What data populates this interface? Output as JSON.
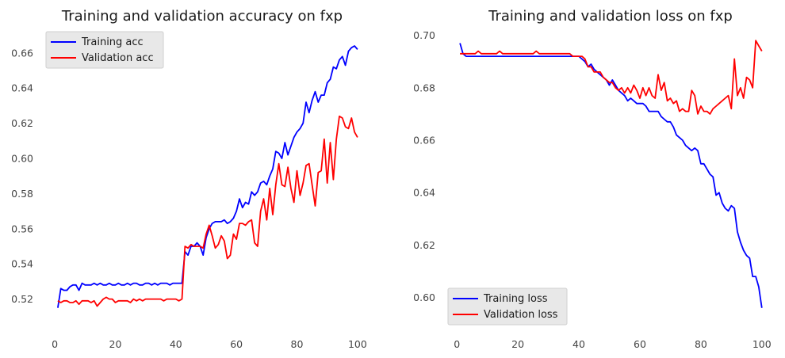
{
  "chart_data": [
    {
      "type": "line",
      "title": "Training and validation accuracy on fxp",
      "xlabel": "",
      "ylabel": "",
      "xlim": [
        -5,
        105
      ],
      "ylim": [
        0.509,
        0.673
      ],
      "xticks": [
        0,
        20,
        40,
        60,
        80,
        100
      ],
      "yticks": [
        0.52,
        0.54,
        0.56,
        0.58,
        0.6,
        0.62,
        0.64,
        0.66
      ],
      "ytick_labels": [
        "0.52",
        "0.54",
        "0.56",
        "0.58",
        "0.60",
        "0.62",
        "0.64",
        "0.66"
      ],
      "grid": false,
      "legend": "upper-left",
      "series": [
        {
          "name": "Training acc",
          "color": "#0000ff",
          "x": [
            1,
            2,
            3,
            4,
            5,
            6,
            7,
            8,
            9,
            10,
            11,
            12,
            13,
            14,
            15,
            16,
            17,
            18,
            19,
            20,
            21,
            22,
            23,
            24,
            25,
            26,
            27,
            28,
            29,
            30,
            31,
            32,
            33,
            34,
            35,
            36,
            37,
            38,
            39,
            40,
            41,
            42,
            43,
            44,
            45,
            46,
            47,
            48,
            49,
            50,
            51,
            52,
            53,
            54,
            55,
            56,
            57,
            58,
            59,
            60,
            61,
            62,
            63,
            64,
            65,
            66,
            67,
            68,
            69,
            70,
            71,
            72,
            73,
            74,
            75,
            76,
            77,
            78,
            79,
            80,
            81,
            82,
            83,
            84,
            85,
            86,
            87,
            88,
            89,
            90,
            91,
            92,
            93,
            94,
            95,
            96,
            97,
            98,
            99,
            100
          ],
          "y": [
            0.515,
            0.526,
            0.525,
            0.525,
            0.527,
            0.528,
            0.528,
            0.525,
            0.529,
            0.528,
            0.528,
            0.528,
            0.529,
            0.528,
            0.529,
            0.528,
            0.528,
            0.529,
            0.528,
            0.528,
            0.529,
            0.528,
            0.528,
            0.529,
            0.528,
            0.529,
            0.529,
            0.528,
            0.528,
            0.529,
            0.529,
            0.528,
            0.529,
            0.528,
            0.529,
            0.529,
            0.529,
            0.528,
            0.529,
            0.529,
            0.529,
            0.529,
            0.547,
            0.545,
            0.55,
            0.55,
            0.552,
            0.55,
            0.545,
            0.555,
            0.56,
            0.563,
            0.564,
            0.564,
            0.564,
            0.565,
            0.563,
            0.564,
            0.566,
            0.57,
            0.577,
            0.572,
            0.575,
            0.574,
            0.581,
            0.579,
            0.581,
            0.586,
            0.587,
            0.585,
            0.59,
            0.594,
            0.604,
            0.603,
            0.6,
            0.609,
            0.602,
            0.607,
            0.612,
            0.615,
            0.617,
            0.62,
            0.632,
            0.626,
            0.633,
            0.638,
            0.632,
            0.636,
            0.636,
            0.643,
            0.645,
            0.652,
            0.651,
            0.656,
            0.658,
            0.653,
            0.661,
            0.663,
            0.664,
            0.662
          ]
        },
        {
          "name": "Validation acc",
          "color": "#ff0000",
          "x": [
            1,
            2,
            3,
            4,
            5,
            6,
            7,
            8,
            9,
            10,
            11,
            12,
            13,
            14,
            15,
            16,
            17,
            18,
            19,
            20,
            21,
            22,
            23,
            24,
            25,
            26,
            27,
            28,
            29,
            30,
            31,
            32,
            33,
            34,
            35,
            36,
            37,
            38,
            39,
            40,
            41,
            42,
            43,
            44,
            45,
            46,
            47,
            48,
            49,
            50,
            51,
            52,
            53,
            54,
            55,
            56,
            57,
            58,
            59,
            60,
            61,
            62,
            63,
            64,
            65,
            66,
            67,
            68,
            69,
            70,
            71,
            72,
            73,
            74,
            75,
            76,
            77,
            78,
            79,
            80,
            81,
            82,
            83,
            84,
            85,
            86,
            87,
            88,
            89,
            90,
            91,
            92,
            93,
            94,
            95,
            96,
            97,
            98,
            99,
            100
          ],
          "y": [
            0.519,
            0.518,
            0.519,
            0.519,
            0.518,
            0.518,
            0.519,
            0.517,
            0.519,
            0.519,
            0.519,
            0.518,
            0.519,
            0.516,
            0.518,
            0.52,
            0.521,
            0.52,
            0.52,
            0.518,
            0.519,
            0.519,
            0.519,
            0.519,
            0.518,
            0.52,
            0.519,
            0.52,
            0.519,
            0.52,
            0.52,
            0.52,
            0.52,
            0.52,
            0.52,
            0.519,
            0.52,
            0.52,
            0.52,
            0.52,
            0.519,
            0.52,
            0.55,
            0.549,
            0.551,
            0.55,
            0.55,
            0.55,
            0.549,
            0.557,
            0.562,
            0.556,
            0.549,
            0.551,
            0.556,
            0.553,
            0.543,
            0.545,
            0.557,
            0.554,
            0.563,
            0.563,
            0.562,
            0.564,
            0.565,
            0.552,
            0.55,
            0.57,
            0.577,
            0.565,
            0.583,
            0.568,
            0.585,
            0.597,
            0.585,
            0.584,
            0.595,
            0.583,
            0.575,
            0.593,
            0.579,
            0.586,
            0.596,
            0.597,
            0.585,
            0.573,
            0.592,
            0.593,
            0.611,
            0.586,
            0.609,
            0.588,
            0.611,
            0.624,
            0.623,
            0.618,
            0.617,
            0.623,
            0.615,
            0.612
          ]
        }
      ]
    },
    {
      "type": "line",
      "title": "Training and validation loss on fxp",
      "xlabel": "",
      "ylabel": "",
      "xlim": [
        -5,
        105
      ],
      "ylim": [
        0.592,
        0.702
      ],
      "xticks": [
        0,
        20,
        40,
        60,
        80,
        100
      ],
      "yticks": [
        0.6,
        0.62,
        0.64,
        0.66,
        0.68,
        0.7
      ],
      "ytick_labels": [
        "0.60",
        "0.62",
        "0.64",
        "0.66",
        "0.68",
        "0.70"
      ],
      "grid": false,
      "legend": "lower-left",
      "series": [
        {
          "name": "Training loss",
          "color": "#0000ff",
          "x": [
            1,
            2,
            3,
            4,
            5,
            6,
            7,
            8,
            9,
            10,
            11,
            12,
            13,
            14,
            15,
            16,
            17,
            18,
            19,
            20,
            21,
            22,
            23,
            24,
            25,
            26,
            27,
            28,
            29,
            30,
            31,
            32,
            33,
            34,
            35,
            36,
            37,
            38,
            39,
            40,
            41,
            42,
            43,
            44,
            45,
            46,
            47,
            48,
            49,
            50,
            51,
            52,
            53,
            54,
            55,
            56,
            57,
            58,
            59,
            60,
            61,
            62,
            63,
            64,
            65,
            66,
            67,
            68,
            69,
            70,
            71,
            72,
            73,
            74,
            75,
            76,
            77,
            78,
            79,
            80,
            81,
            82,
            83,
            84,
            85,
            86,
            87,
            88,
            89,
            90,
            91,
            92,
            93,
            94,
            95,
            96,
            97,
            98,
            99,
            100
          ],
          "y": [
            0.697,
            0.693,
            0.692,
            0.692,
            0.692,
            0.692,
            0.692,
            0.692,
            0.692,
            0.692,
            0.692,
            0.692,
            0.692,
            0.692,
            0.692,
            0.692,
            0.692,
            0.692,
            0.692,
            0.692,
            0.692,
            0.692,
            0.692,
            0.692,
            0.692,
            0.692,
            0.692,
            0.692,
            0.692,
            0.692,
            0.692,
            0.692,
            0.692,
            0.692,
            0.692,
            0.692,
            0.692,
            0.692,
            0.692,
            0.692,
            0.691,
            0.69,
            0.688,
            0.689,
            0.687,
            0.686,
            0.685,
            0.684,
            0.683,
            0.681,
            0.683,
            0.681,
            0.679,
            0.678,
            0.677,
            0.675,
            0.676,
            0.675,
            0.674,
            0.674,
            0.674,
            0.673,
            0.671,
            0.671,
            0.671,
            0.671,
            0.669,
            0.668,
            0.667,
            0.667,
            0.665,
            0.662,
            0.661,
            0.66,
            0.658,
            0.657,
            0.656,
            0.657,
            0.656,
            0.651,
            0.651,
            0.649,
            0.647,
            0.646,
            0.639,
            0.64,
            0.636,
            0.634,
            0.633,
            0.635,
            0.634,
            0.625,
            0.621,
            0.618,
            0.616,
            0.615,
            0.608,
            0.608,
            0.604,
            0.596
          ]
        },
        {
          "name": "Validation loss",
          "color": "#ff0000",
          "x": [
            1,
            2,
            3,
            4,
            5,
            6,
            7,
            8,
            9,
            10,
            11,
            12,
            13,
            14,
            15,
            16,
            17,
            18,
            19,
            20,
            21,
            22,
            23,
            24,
            25,
            26,
            27,
            28,
            29,
            30,
            31,
            32,
            33,
            34,
            35,
            36,
            37,
            38,
            39,
            40,
            41,
            42,
            43,
            44,
            45,
            46,
            47,
            48,
            49,
            50,
            51,
            52,
            53,
            54,
            55,
            56,
            57,
            58,
            59,
            60,
            61,
            62,
            63,
            64,
            65,
            66,
            67,
            68,
            69,
            70,
            71,
            72,
            73,
            74,
            75,
            76,
            77,
            78,
            79,
            80,
            81,
            82,
            83,
            84,
            85,
            86,
            87,
            88,
            89,
            90,
            91,
            92,
            93,
            94,
            95,
            96,
            97,
            98,
            99,
            100
          ],
          "y": [
            0.693,
            0.693,
            0.693,
            0.693,
            0.693,
            0.693,
            0.694,
            0.693,
            0.693,
            0.693,
            0.693,
            0.693,
            0.693,
            0.694,
            0.693,
            0.693,
            0.693,
            0.693,
            0.693,
            0.693,
            0.693,
            0.693,
            0.693,
            0.693,
            0.693,
            0.694,
            0.693,
            0.693,
            0.693,
            0.693,
            0.693,
            0.693,
            0.693,
            0.693,
            0.693,
            0.693,
            0.693,
            0.692,
            0.692,
            0.692,
            0.692,
            0.691,
            0.688,
            0.688,
            0.686,
            0.686,
            0.686,
            0.684,
            0.683,
            0.682,
            0.682,
            0.68,
            0.679,
            0.68,
            0.678,
            0.68,
            0.678,
            0.681,
            0.679,
            0.676,
            0.68,
            0.677,
            0.68,
            0.677,
            0.676,
            0.685,
            0.679,
            0.682,
            0.675,
            0.676,
            0.674,
            0.675,
            0.671,
            0.672,
            0.671,
            0.671,
            0.679,
            0.677,
            0.67,
            0.673,
            0.671,
            0.671,
            0.67,
            0.672,
            0.673,
            0.674,
            0.675,
            0.676,
            0.677,
            0.672,
            0.691,
            0.677,
            0.68,
            0.676,
            0.684,
            0.683,
            0.68,
            0.698,
            0.696,
            0.694
          ]
        }
      ]
    }
  ]
}
